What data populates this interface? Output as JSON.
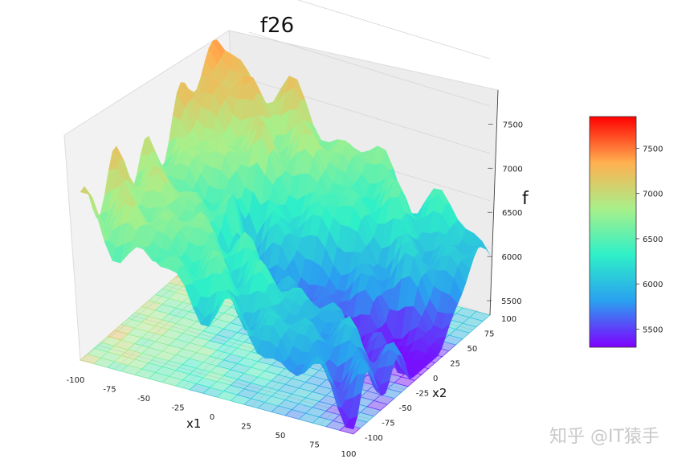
{
  "chart_data": {
    "type": "surface",
    "title": "f26",
    "xlabel": "x1",
    "ylabel": "x2",
    "zlabel": "f",
    "xlim": [
      -100,
      100
    ],
    "ylim": [
      -100,
      100
    ],
    "zlim": [
      5300,
      7850
    ],
    "xticks": [
      "-100",
      "-75",
      "-50",
      "-25",
      "0",
      "25",
      "50",
      "75",
      "100"
    ],
    "yticks": [
      "-100",
      "-75",
      "-50",
      "-25",
      "0",
      "25",
      "50",
      "75",
      "100"
    ],
    "zticks": [
      "5500",
      "6000",
      "6500",
      "7000",
      "7500"
    ],
    "colorbar": {
      "colormap": "rainbow",
      "ticks": [
        "5500",
        "6000",
        "6500",
        "7000",
        "7500"
      ],
      "range": [
        5300,
        7850
      ]
    },
    "grid": true,
    "contour_projection": true
  },
  "watermark": "知乎 @IT猿手"
}
